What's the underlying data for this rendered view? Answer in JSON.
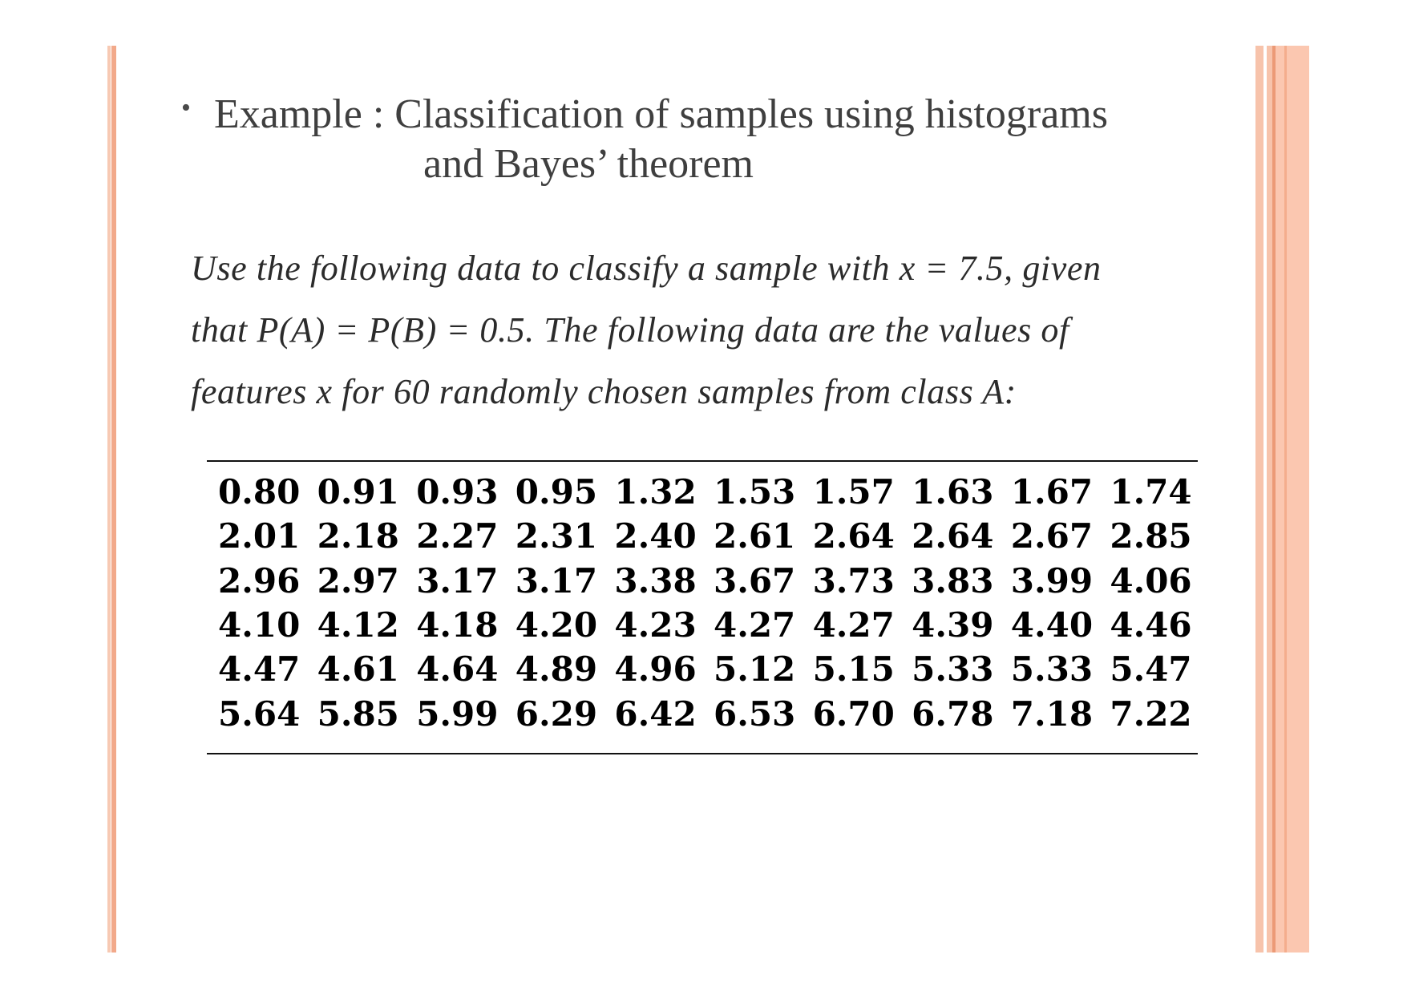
{
  "title": {
    "bullet": "•",
    "line1": "Example : Classification of samples using histograms",
    "line2": "and Bayes’ theorem"
  },
  "problem": {
    "line1": "Use the  following data to classify a sample with x = 7.5, given",
    "line2": "that P(A) = P(B) = 0.5. The  following data are the values of",
    "line3": "features x  for 60 randomly chosen samples  from class A:"
  },
  "data_table": {
    "rows": [
      [
        "0.80",
        "0.91",
        "0.93",
        "0.95",
        "1.32",
        "1.53",
        "1.57",
        "1.63",
        "1.67",
        "1.74"
      ],
      [
        "2.01",
        "2.18",
        "2.27",
        "2.31",
        "2.40",
        "2.61",
        "2.64",
        "2.64",
        "2.67",
        "2.85"
      ],
      [
        "2.96",
        "2.97",
        "3.17",
        "3.17",
        "3.38",
        "3.67",
        "3.73",
        "3.83",
        "3.99",
        "4.06"
      ],
      [
        "4.10",
        "4.12",
        "4.18",
        "4.20",
        "4.23",
        "4.27",
        "4.27",
        "4.39",
        "4.40",
        "4.46"
      ],
      [
        "4.47",
        "4.61",
        "4.64",
        "4.89",
        "4.96",
        "5.12",
        "5.15",
        "5.33",
        "5.33",
        "5.47"
      ],
      [
        "5.64",
        "5.85",
        "5.99",
        "6.29",
        "6.42",
        "6.53",
        "6.70",
        "6.78",
        "7.18",
        "7.22"
      ]
    ]
  },
  "colors": {
    "accent_stripe": "#f7c3ab",
    "accent_stripe_dark": "#ec9a76",
    "title_text": "#3f3f3f",
    "data_text": "#000000"
  }
}
